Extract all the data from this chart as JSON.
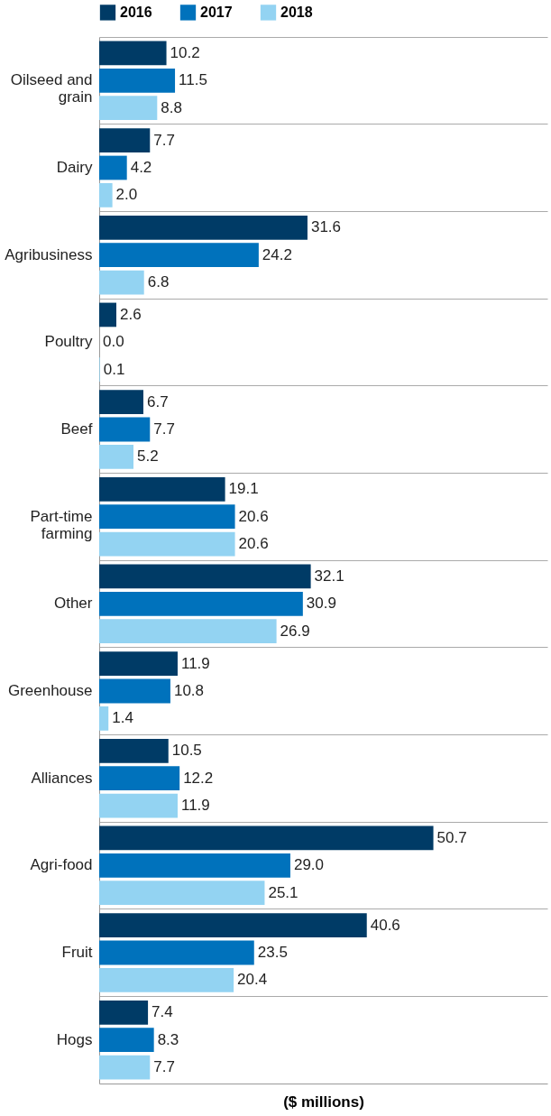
{
  "chart_data": {
    "type": "bar",
    "orientation": "horizontal",
    "xlabel": "($ millions)",
    "categories": [
      "Oilseed and grain",
      "Dairy",
      "Agribusiness",
      "Poultry",
      "Beef",
      "Part-time farming",
      "Other",
      "Greenhouse",
      "Alliances",
      "Agri-food",
      "Fruit",
      "Hogs"
    ],
    "series": [
      {
        "name": "2016",
        "color": "#003b66",
        "values": [
          10.2,
          7.7,
          31.6,
          2.6,
          6.7,
          19.1,
          32.1,
          11.9,
          10.5,
          50.7,
          40.6,
          7.4
        ],
        "value_labels": [
          "10.2",
          "7.7",
          "31.6",
          "2.6",
          "6.7",
          "19.1",
          "32.1",
          "11.9",
          "10.5",
          "50.7",
          "40.6",
          "7.4"
        ]
      },
      {
        "name": "2017",
        "color": "#0072bc",
        "values": [
          11.5,
          4.2,
          24.2,
          0.0,
          7.7,
          20.6,
          30.9,
          10.8,
          12.2,
          29.0,
          23.5,
          8.3
        ],
        "value_labels": [
          "11.5",
          "4.2",
          "24.2",
          "0.0",
          "7.7",
          "20.6",
          "30.9",
          "10.8",
          "12.2",
          "29.0",
          "23.5",
          "8.3"
        ]
      },
      {
        "name": "2018",
        "color": "#93d3f2",
        "values": [
          8.8,
          2.0,
          6.8,
          0.1,
          5.2,
          20.6,
          26.9,
          1.4,
          11.9,
          25.1,
          20.4,
          7.7
        ],
        "value_labels": [
          "8.8",
          "2.0",
          "6.8",
          "0.1",
          "5.2",
          "20.6",
          "26.9",
          "1.4",
          "11.9",
          "25.1",
          "20.4",
          "7.7"
        ]
      }
    ],
    "xlim": [
      0,
      68
    ],
    "tick_labels": "y",
    "grid": "y",
    "legend": "top"
  }
}
